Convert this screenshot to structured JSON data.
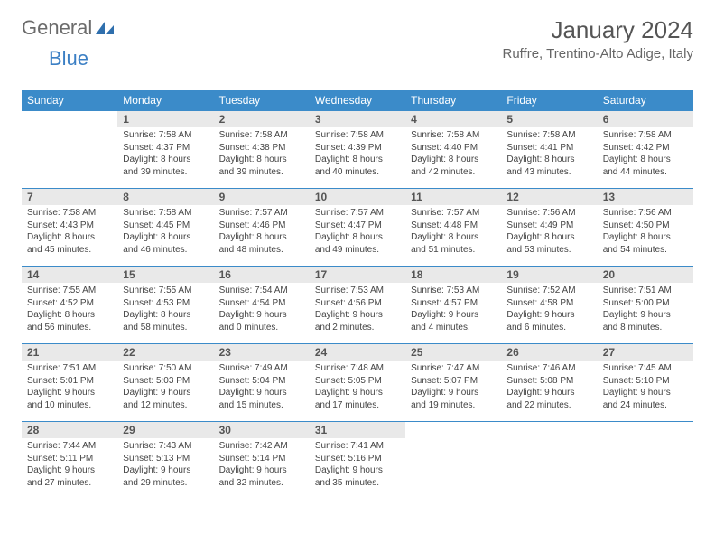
{
  "logo": {
    "part1": "General",
    "part2": "Blue"
  },
  "title": "January 2024",
  "location": "Ruffre, Trentino-Alto Adige, Italy",
  "colors": {
    "header_bg": "#3b8bc9",
    "header_text": "#ffffff",
    "daynum_bg": "#e9e9e9",
    "border": "#3b8bc9"
  },
  "weekdays": [
    "Sunday",
    "Monday",
    "Tuesday",
    "Wednesday",
    "Thursday",
    "Friday",
    "Saturday"
  ],
  "weeks": [
    [
      {
        "day": "",
        "sunrise": "",
        "sunset": "",
        "daylight": ""
      },
      {
        "day": "1",
        "sunrise": "Sunrise: 7:58 AM",
        "sunset": "Sunset: 4:37 PM",
        "daylight": "Daylight: 8 hours and 39 minutes."
      },
      {
        "day": "2",
        "sunrise": "Sunrise: 7:58 AM",
        "sunset": "Sunset: 4:38 PM",
        "daylight": "Daylight: 8 hours and 39 minutes."
      },
      {
        "day": "3",
        "sunrise": "Sunrise: 7:58 AM",
        "sunset": "Sunset: 4:39 PM",
        "daylight": "Daylight: 8 hours and 40 minutes."
      },
      {
        "day": "4",
        "sunrise": "Sunrise: 7:58 AM",
        "sunset": "Sunset: 4:40 PM",
        "daylight": "Daylight: 8 hours and 42 minutes."
      },
      {
        "day": "5",
        "sunrise": "Sunrise: 7:58 AM",
        "sunset": "Sunset: 4:41 PM",
        "daylight": "Daylight: 8 hours and 43 minutes."
      },
      {
        "day": "6",
        "sunrise": "Sunrise: 7:58 AM",
        "sunset": "Sunset: 4:42 PM",
        "daylight": "Daylight: 8 hours and 44 minutes."
      }
    ],
    [
      {
        "day": "7",
        "sunrise": "Sunrise: 7:58 AM",
        "sunset": "Sunset: 4:43 PM",
        "daylight": "Daylight: 8 hours and 45 minutes."
      },
      {
        "day": "8",
        "sunrise": "Sunrise: 7:58 AM",
        "sunset": "Sunset: 4:45 PM",
        "daylight": "Daylight: 8 hours and 46 minutes."
      },
      {
        "day": "9",
        "sunrise": "Sunrise: 7:57 AM",
        "sunset": "Sunset: 4:46 PM",
        "daylight": "Daylight: 8 hours and 48 minutes."
      },
      {
        "day": "10",
        "sunrise": "Sunrise: 7:57 AM",
        "sunset": "Sunset: 4:47 PM",
        "daylight": "Daylight: 8 hours and 49 minutes."
      },
      {
        "day": "11",
        "sunrise": "Sunrise: 7:57 AM",
        "sunset": "Sunset: 4:48 PM",
        "daylight": "Daylight: 8 hours and 51 minutes."
      },
      {
        "day": "12",
        "sunrise": "Sunrise: 7:56 AM",
        "sunset": "Sunset: 4:49 PM",
        "daylight": "Daylight: 8 hours and 53 minutes."
      },
      {
        "day": "13",
        "sunrise": "Sunrise: 7:56 AM",
        "sunset": "Sunset: 4:50 PM",
        "daylight": "Daylight: 8 hours and 54 minutes."
      }
    ],
    [
      {
        "day": "14",
        "sunrise": "Sunrise: 7:55 AM",
        "sunset": "Sunset: 4:52 PM",
        "daylight": "Daylight: 8 hours and 56 minutes."
      },
      {
        "day": "15",
        "sunrise": "Sunrise: 7:55 AM",
        "sunset": "Sunset: 4:53 PM",
        "daylight": "Daylight: 8 hours and 58 minutes."
      },
      {
        "day": "16",
        "sunrise": "Sunrise: 7:54 AM",
        "sunset": "Sunset: 4:54 PM",
        "daylight": "Daylight: 9 hours and 0 minutes."
      },
      {
        "day": "17",
        "sunrise": "Sunrise: 7:53 AM",
        "sunset": "Sunset: 4:56 PM",
        "daylight": "Daylight: 9 hours and 2 minutes."
      },
      {
        "day": "18",
        "sunrise": "Sunrise: 7:53 AM",
        "sunset": "Sunset: 4:57 PM",
        "daylight": "Daylight: 9 hours and 4 minutes."
      },
      {
        "day": "19",
        "sunrise": "Sunrise: 7:52 AM",
        "sunset": "Sunset: 4:58 PM",
        "daylight": "Daylight: 9 hours and 6 minutes."
      },
      {
        "day": "20",
        "sunrise": "Sunrise: 7:51 AM",
        "sunset": "Sunset: 5:00 PM",
        "daylight": "Daylight: 9 hours and 8 minutes."
      }
    ],
    [
      {
        "day": "21",
        "sunrise": "Sunrise: 7:51 AM",
        "sunset": "Sunset: 5:01 PM",
        "daylight": "Daylight: 9 hours and 10 minutes."
      },
      {
        "day": "22",
        "sunrise": "Sunrise: 7:50 AM",
        "sunset": "Sunset: 5:03 PM",
        "daylight": "Daylight: 9 hours and 12 minutes."
      },
      {
        "day": "23",
        "sunrise": "Sunrise: 7:49 AM",
        "sunset": "Sunset: 5:04 PM",
        "daylight": "Daylight: 9 hours and 15 minutes."
      },
      {
        "day": "24",
        "sunrise": "Sunrise: 7:48 AM",
        "sunset": "Sunset: 5:05 PM",
        "daylight": "Daylight: 9 hours and 17 minutes."
      },
      {
        "day": "25",
        "sunrise": "Sunrise: 7:47 AM",
        "sunset": "Sunset: 5:07 PM",
        "daylight": "Daylight: 9 hours and 19 minutes."
      },
      {
        "day": "26",
        "sunrise": "Sunrise: 7:46 AM",
        "sunset": "Sunset: 5:08 PM",
        "daylight": "Daylight: 9 hours and 22 minutes."
      },
      {
        "day": "27",
        "sunrise": "Sunrise: 7:45 AM",
        "sunset": "Sunset: 5:10 PM",
        "daylight": "Daylight: 9 hours and 24 minutes."
      }
    ],
    [
      {
        "day": "28",
        "sunrise": "Sunrise: 7:44 AM",
        "sunset": "Sunset: 5:11 PM",
        "daylight": "Daylight: 9 hours and 27 minutes."
      },
      {
        "day": "29",
        "sunrise": "Sunrise: 7:43 AM",
        "sunset": "Sunset: 5:13 PM",
        "daylight": "Daylight: 9 hours and 29 minutes."
      },
      {
        "day": "30",
        "sunrise": "Sunrise: 7:42 AM",
        "sunset": "Sunset: 5:14 PM",
        "daylight": "Daylight: 9 hours and 32 minutes."
      },
      {
        "day": "31",
        "sunrise": "Sunrise: 7:41 AM",
        "sunset": "Sunset: 5:16 PM",
        "daylight": "Daylight: 9 hours and 35 minutes."
      },
      {
        "day": "",
        "sunrise": "",
        "sunset": "",
        "daylight": ""
      },
      {
        "day": "",
        "sunrise": "",
        "sunset": "",
        "daylight": ""
      },
      {
        "day": "",
        "sunrise": "",
        "sunset": "",
        "daylight": ""
      }
    ]
  ]
}
